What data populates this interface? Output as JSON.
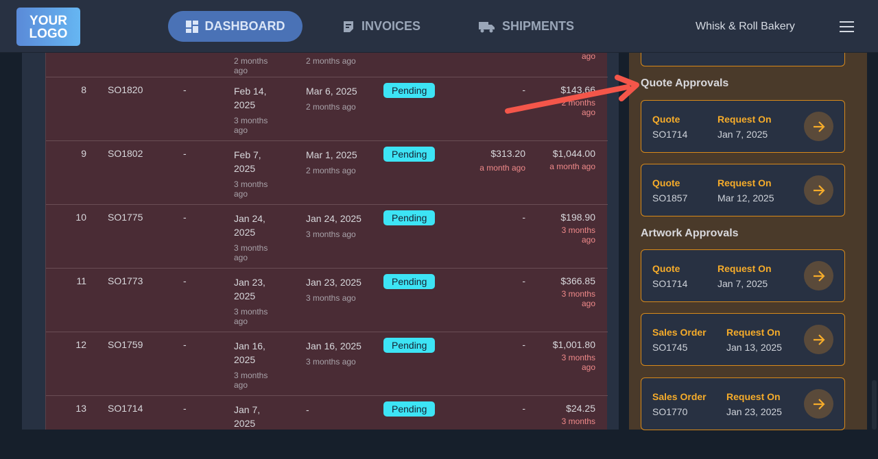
{
  "header": {
    "logo": "YOUR LOGO",
    "nav": [
      {
        "label": "DASHBOARD",
        "icon": "dashboard-icon",
        "active": true
      },
      {
        "label": "INVOICES",
        "icon": "invoice-icon"
      },
      {
        "label": "SHIPMENTS",
        "icon": "truck-icon"
      }
    ],
    "company": "Whisk & Roll Bakery"
  },
  "table": {
    "partial_row": {
      "date1_rel": "2 months ago",
      "date2_rel": "2 months ago",
      "amount2_rel": "ago"
    },
    "rows": [
      {
        "num": "8",
        "order": "SO1820",
        "ref": "-",
        "date1": "Feb 14, 2025",
        "date1_rel": "3 months ago",
        "date2": "Mar 6, 2025",
        "date2_rel": "2 months ago",
        "status": "Pending",
        "amount1": "-",
        "amount1_rel": "",
        "amount2": "$143.66",
        "amount2_rel": "2 months ago"
      },
      {
        "num": "9",
        "order": "SO1802",
        "ref": "-",
        "date1": "Feb 7, 2025",
        "date1_rel": "3 months ago",
        "date2": "Mar 1, 2025",
        "date2_rel": "2 months ago",
        "status": "Pending",
        "amount1": "$313.20",
        "amount1_rel": "a month ago",
        "amount2": "$1,044.00",
        "amount2_rel": "a month ago"
      },
      {
        "num": "10",
        "order": "SO1775",
        "ref": "-",
        "date1": "Jan 24, 2025",
        "date1_rel": "3 months ago",
        "date2": "Jan 24, 2025",
        "date2_rel": "3 months ago",
        "status": "Pending",
        "amount1": "-",
        "amount1_rel": "",
        "amount2": "$198.90",
        "amount2_rel": "3 months ago"
      },
      {
        "num": "11",
        "order": "SO1773",
        "ref": "-",
        "date1": "Jan 23, 2025",
        "date1_rel": "3 months ago",
        "date2": "Jan 23, 2025",
        "date2_rel": "3 months ago",
        "status": "Pending",
        "amount1": "-",
        "amount1_rel": "",
        "amount2": "$366.85",
        "amount2_rel": "3 months ago"
      },
      {
        "num": "12",
        "order": "SO1759",
        "ref": "-",
        "date1": "Jan 16, 2025",
        "date1_rel": "3 months ago",
        "date2": "Jan 16, 2025",
        "date2_rel": "3 months ago",
        "status": "Pending",
        "amount1": "-",
        "amount1_rel": "",
        "amount2": "$1,001.80",
        "amount2_rel": "3 months ago"
      },
      {
        "num": "13",
        "order": "SO1714",
        "ref": "-",
        "date1": "Jan 7, 2025",
        "date1_rel": "",
        "date2": "-",
        "date2_rel": "",
        "status": "Pending",
        "amount1": "-",
        "amount1_rel": "",
        "amount2": "$24.25",
        "amount2_rel": "3 months"
      }
    ]
  },
  "approvals": {
    "quote_heading": "Quote Approvals",
    "quote": [
      {
        "type": "Quote",
        "id": "SO1714",
        "date_label": "Request On",
        "date": "Jan 7, 2025"
      },
      {
        "type": "Quote",
        "id": "SO1857",
        "date_label": "Request On",
        "date": "Mar 12, 2025"
      }
    ],
    "artwork_heading": "Artwork Approvals",
    "artwork": [
      {
        "type": "Quote",
        "id": "SO1714",
        "date_label": "Request On",
        "date": "Jan 7, 2025"
      },
      {
        "type": "Sales Order",
        "id": "SO1745",
        "date_label": "Request On",
        "date": "Jan 13, 2025"
      },
      {
        "type": "Sales Order",
        "id": "SO1770",
        "date_label": "Request On",
        "date": "Jan 23, 2025"
      }
    ]
  },
  "colors": {
    "accent": "#4a72b6",
    "badge": "#3de4f5",
    "card_title": "#f6ac2a",
    "annotation": "#f4564a"
  }
}
